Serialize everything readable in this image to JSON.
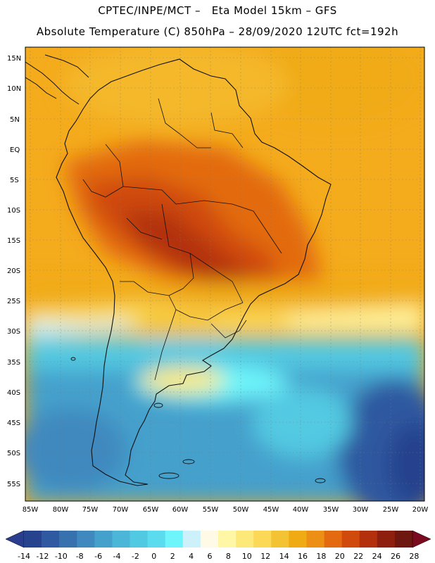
{
  "header": {
    "line1": "CPTEC/INPE/MCT –   Eta Model 15km – GFS",
    "line2": "Absolute Temperature (C) 850hPa – 28/09/2020 12UTC fct=192h"
  },
  "map": {
    "lat_labels": [
      "15N",
      "10N",
      "5N",
      "EQ",
      "5S",
      "10S",
      "15S",
      "20S",
      "25S",
      "30S",
      "35S",
      "40S",
      "45S",
      "50S",
      "55S"
    ],
    "lon_labels": [
      "85W",
      "80W",
      "75W",
      "70W",
      "65W",
      "60W",
      "55W",
      "50W",
      "45W",
      "40W",
      "35W",
      "30W",
      "25W",
      "20W"
    ]
  },
  "colorbar": {
    "labels": [
      "-14",
      "-12",
      "-10",
      "-8",
      "-6",
      "-4",
      "-2",
      "0",
      "2",
      "4",
      "6",
      "8",
      "10",
      "12",
      "14",
      "16",
      "18",
      "20",
      "22",
      "24",
      "26",
      "28"
    ],
    "under_color": "#2a3d8f",
    "over_color": "#7a0a1e",
    "colors": [
      "#27438e",
      "#2f59a0",
      "#3872ae",
      "#3f89bf",
      "#45a0cc",
      "#4bb6d8",
      "#52c9e2",
      "#5bdbee",
      "#6ef5fb",
      "#cdf1fb",
      "#fffae6",
      "#fff6a6",
      "#fde97a",
      "#fbd957",
      "#f4c333",
      "#f0ab14",
      "#ec8f14",
      "#e36a10",
      "#cf4a0c",
      "#b2300b",
      "#8e1e0d",
      "#6e1711"
    ]
  }
}
